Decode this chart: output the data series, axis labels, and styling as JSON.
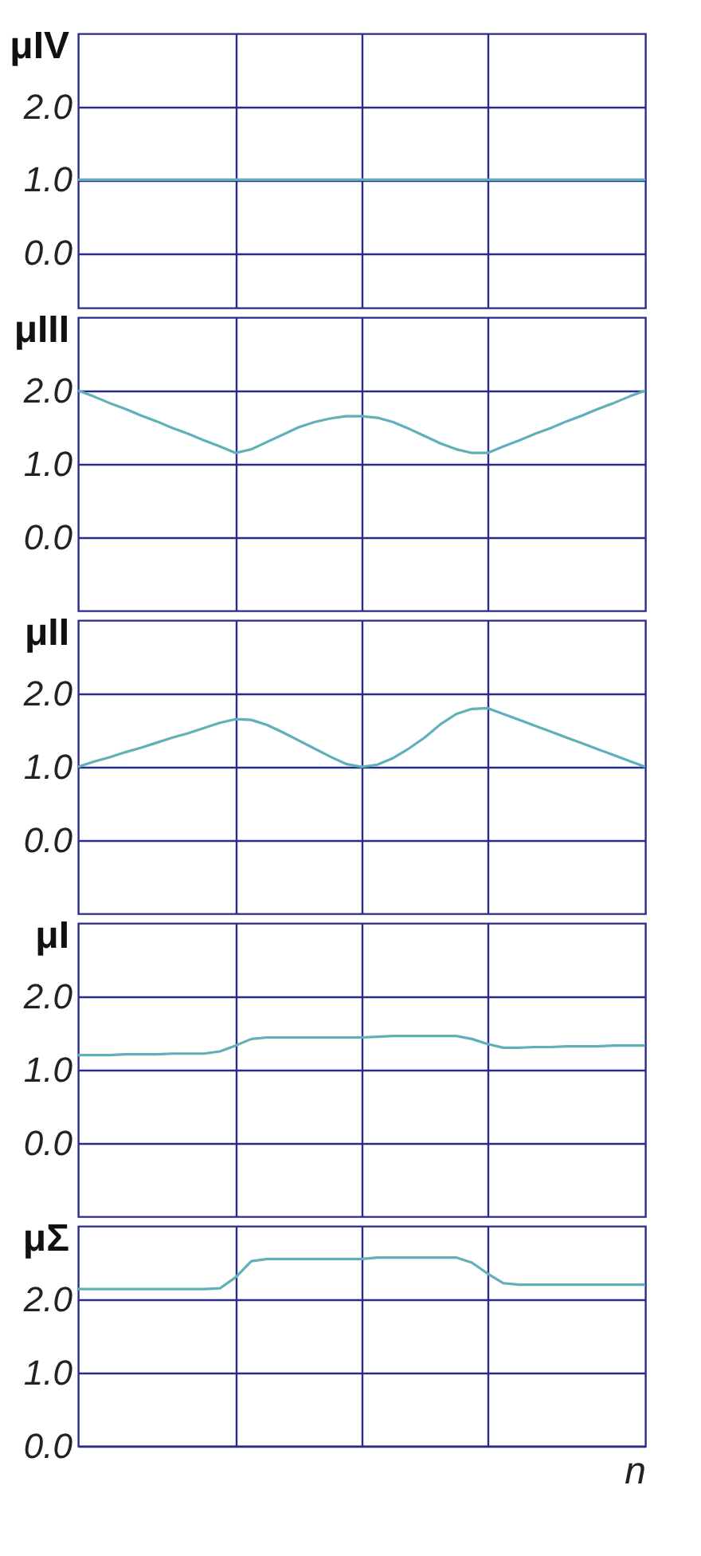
{
  "chart_data": [
    {
      "type": "line",
      "ylabel": "μIV",
      "categories": [
        null,
        null,
        null,
        null,
        null,
        null,
        null,
        null,
        null,
        null,
        null,
        null,
        null,
        null,
        null,
        null,
        null,
        null,
        null,
        null,
        null,
        null,
        null,
        null,
        null,
        null,
        null,
        null,
        null,
        null,
        null,
        null,
        null,
        null,
        null,
        null,
        null
      ],
      "series": [
        {
          "color": "#5fb0b8",
          "values": [
            1.0,
            1.0,
            1.0,
            1.0,
            1.0,
            1.0,
            1.0,
            1.0,
            1.0,
            1.0,
            1.0,
            1.0,
            1.0,
            1.0,
            1.0,
            1.0,
            1.0,
            1.0,
            1.0,
            1.0,
            1.0,
            1.0,
            1.0,
            1.0,
            1.0,
            1.0,
            1.0,
            1.0,
            1.0,
            1.0,
            1.0,
            1.0,
            1.0,
            1.0,
            1.0,
            1.0,
            1.0
          ]
        }
      ],
      "ylim": [
        -0.75,
        3.0
      ],
      "yticks": [
        {
          "value": 2,
          "label": "2.0"
        },
        {
          "value": 1,
          "label": "1.0"
        },
        {
          "value": 0,
          "label": "0.0"
        }
      ],
      "grid": true,
      "tick_labels": "y"
    },
    {
      "type": "line",
      "ylabel": "μIII",
      "categories": [
        null,
        null,
        null,
        null,
        null,
        null,
        null,
        null,
        null,
        null,
        null,
        null,
        null,
        null,
        null,
        null,
        null,
        null,
        null,
        null,
        null,
        null,
        null,
        null,
        null,
        null,
        null,
        null,
        null,
        null,
        null,
        null,
        null,
        null,
        null,
        null,
        null
      ],
      "series": [
        {
          "color": "#5fb0b8",
          "values": [
            2.0,
            1.92,
            1.83,
            1.75,
            1.66,
            1.58,
            1.49,
            1.41,
            1.32,
            1.24,
            1.15,
            1.2,
            1.3,
            1.4,
            1.5,
            1.57,
            1.62,
            1.65,
            1.65,
            1.63,
            1.57,
            1.48,
            1.38,
            1.28,
            1.2,
            1.15,
            1.15,
            1.24,
            1.32,
            1.41,
            1.49,
            1.58,
            1.66,
            1.75,
            1.83,
            1.92,
            2.0
          ]
        }
      ],
      "ylim": [
        -1.0,
        3.0
      ],
      "yticks": [
        {
          "value": 2,
          "label": "2.0"
        },
        {
          "value": 1,
          "label": "1.0"
        },
        {
          "value": 0,
          "label": "0.0"
        }
      ],
      "grid": true,
      "tick_labels": "y"
    },
    {
      "type": "line",
      "ylabel": "μII",
      "categories": [
        null,
        null,
        null,
        null,
        null,
        null,
        null,
        null,
        null,
        null,
        null,
        null,
        null,
        null,
        null,
        null,
        null,
        null,
        null,
        null,
        null,
        null,
        null,
        null,
        null,
        null,
        null,
        null,
        null,
        null,
        null,
        null,
        null,
        null,
        null,
        null,
        null
      ],
      "series": [
        {
          "color": "#5fb0b8",
          "values": [
            1.0,
            1.07,
            1.13,
            1.2,
            1.26,
            1.33,
            1.4,
            1.46,
            1.53,
            1.6,
            1.65,
            1.64,
            1.57,
            1.47,
            1.36,
            1.25,
            1.14,
            1.04,
            1.0,
            1.03,
            1.12,
            1.25,
            1.4,
            1.58,
            1.72,
            1.79,
            1.8,
            1.72,
            1.64,
            1.56,
            1.48,
            1.4,
            1.32,
            1.24,
            1.16,
            1.08,
            1.0
          ]
        }
      ],
      "ylim": [
        -1.0,
        3.0
      ],
      "yticks": [
        {
          "value": 2,
          "label": "2.0"
        },
        {
          "value": 1,
          "label": "1.0"
        },
        {
          "value": 0,
          "label": "0.0"
        }
      ],
      "grid": true,
      "tick_labels": "y"
    },
    {
      "type": "line",
      "ylabel": "μI",
      "categories": [
        null,
        null,
        null,
        null,
        null,
        null,
        null,
        null,
        null,
        null,
        null,
        null,
        null,
        null,
        null,
        null,
        null,
        null,
        null,
        null,
        null,
        null,
        null,
        null,
        null,
        null,
        null,
        null,
        null,
        null,
        null,
        null,
        null,
        null,
        null,
        null,
        null
      ],
      "series": [
        {
          "color": "#5fb0b8",
          "values": [
            1.2,
            1.2,
            1.2,
            1.21,
            1.21,
            1.21,
            1.22,
            1.22,
            1.22,
            1.25,
            1.33,
            1.42,
            1.44,
            1.44,
            1.44,
            1.44,
            1.44,
            1.44,
            1.44,
            1.45,
            1.46,
            1.46,
            1.46,
            1.46,
            1.46,
            1.42,
            1.35,
            1.3,
            1.3,
            1.31,
            1.31,
            1.32,
            1.32,
            1.32,
            1.33,
            1.33,
            1.33
          ]
        }
      ],
      "ylim": [
        -1.0,
        3.0
      ],
      "yticks": [
        {
          "value": 2,
          "label": "2.0"
        },
        {
          "value": 1,
          "label": "1.0"
        },
        {
          "value": 0,
          "label": "0.0"
        }
      ],
      "grid": true,
      "tick_labels": "y"
    },
    {
      "type": "line",
      "ylabel": "μΣ",
      "xlabel": "n",
      "categories": [
        null,
        null,
        null,
        null,
        null,
        null,
        null,
        null,
        null,
        null,
        null,
        null,
        null,
        null,
        null,
        null,
        null,
        null,
        null,
        null,
        null,
        null,
        null,
        null,
        null,
        null,
        null,
        null,
        null,
        null,
        null,
        null,
        null,
        null,
        null,
        null,
        null
      ],
      "series": [
        {
          "color": "#5fb0b8",
          "values": [
            2.14,
            2.14,
            2.14,
            2.14,
            2.14,
            2.14,
            2.14,
            2.14,
            2.14,
            2.15,
            2.3,
            2.52,
            2.55,
            2.55,
            2.55,
            2.55,
            2.55,
            2.55,
            2.55,
            2.57,
            2.57,
            2.57,
            2.57,
            2.57,
            2.57,
            2.5,
            2.35,
            2.22,
            2.2,
            2.2,
            2.2,
            2.2,
            2.2,
            2.2,
            2.2,
            2.2,
            2.2
          ]
        }
      ],
      "ylim": [
        0.0,
        3.0
      ],
      "yticks": [
        {
          "value": 2,
          "label": "2.0"
        },
        {
          "value": 1,
          "label": "1.0"
        },
        {
          "value": 0,
          "label": "0.0"
        }
      ],
      "grid": true,
      "tick_labels": "y"
    }
  ]
}
